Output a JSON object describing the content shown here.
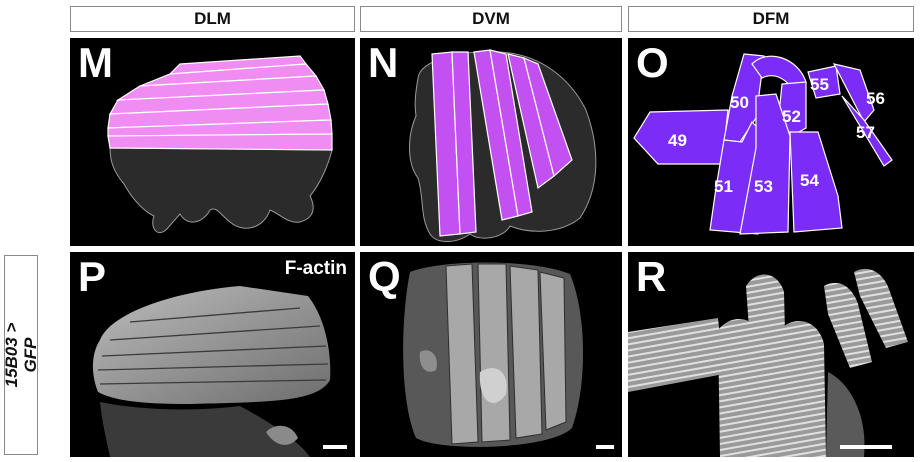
{
  "columns": {
    "dlm": "DLM",
    "dvm": "DVM",
    "dfm": "DFM"
  },
  "row_label": {
    "line1": "15B03 >",
    "line2": "GFP"
  },
  "panels": {
    "m": {
      "letter": "M"
    },
    "n": {
      "letter": "N"
    },
    "o": {
      "letter": "O",
      "muscles": [
        "49",
        "50",
        "51",
        "52",
        "53",
        "54",
        "55",
        "56",
        "57"
      ]
    },
    "p": {
      "letter": "P",
      "annotation": "F-actin"
    },
    "q": {
      "letter": "Q"
    },
    "r": {
      "letter": "R"
    }
  },
  "colors": {
    "dlm": "#ef8df2",
    "dvm": "#c351f2",
    "dfm": "#7b2cf6",
    "thorax": "#2b2b2b"
  }
}
